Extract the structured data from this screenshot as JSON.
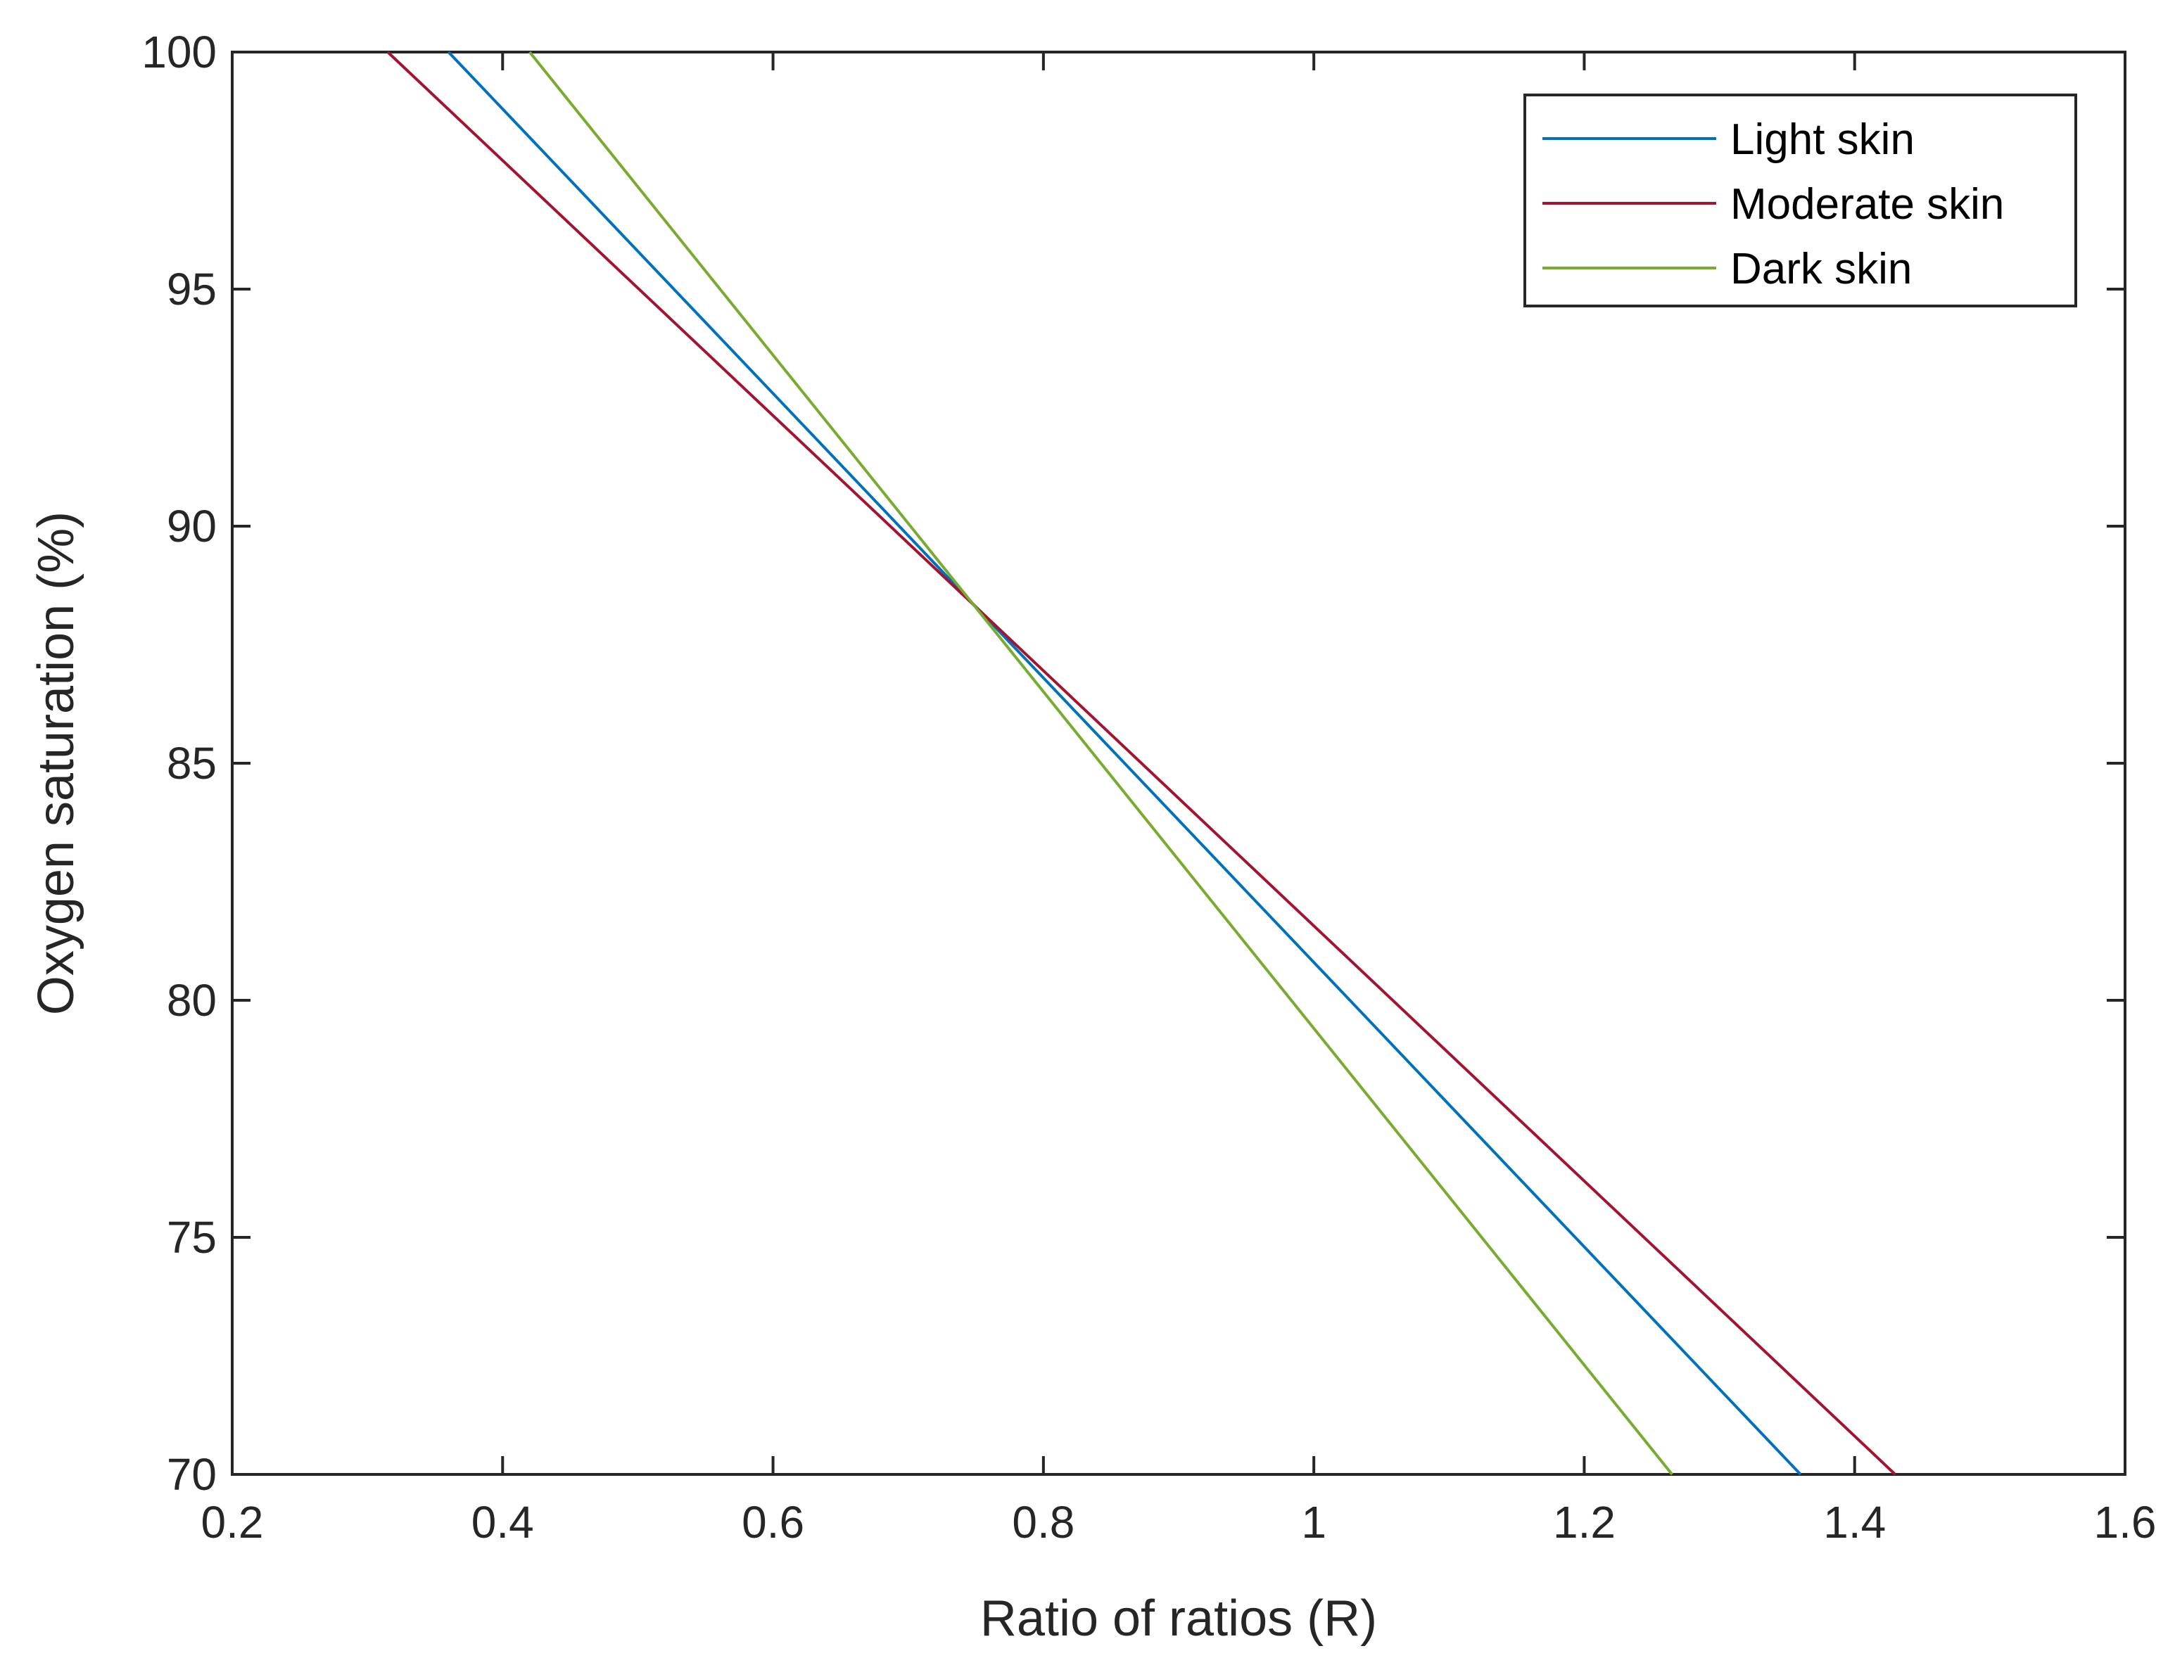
{
  "chart_data": {
    "type": "line",
    "title": "",
    "xlabel": "Ratio of ratios (R)",
    "ylabel": "Oxygen saturation (%)",
    "xlim": [
      0.2,
      1.6
    ],
    "ylim": [
      70,
      100
    ],
    "xticks": [
      "0.2",
      "0.4",
      "0.6",
      "0.8",
      "1",
      "1.2",
      "1.4",
      "1.6"
    ],
    "yticks": [
      "70",
      "75",
      "80",
      "85",
      "90",
      "95",
      "100"
    ],
    "grid": false,
    "legend_position": "top-right",
    "series": [
      {
        "name": "Light skin",
        "color": "#0072BD",
        "x": [
          0.36,
          1.36
        ],
        "y": [
          100,
          70
        ]
      },
      {
        "name": "Moderate skin",
        "color": "#A2142F",
        "x": [
          0.315,
          1.43
        ],
        "y": [
          100,
          70
        ]
      },
      {
        "name": "Dark skin",
        "color": "#77AC30",
        "x": [
          0.42,
          1.265
        ],
        "y": [
          100,
          70
        ]
      }
    ]
  }
}
